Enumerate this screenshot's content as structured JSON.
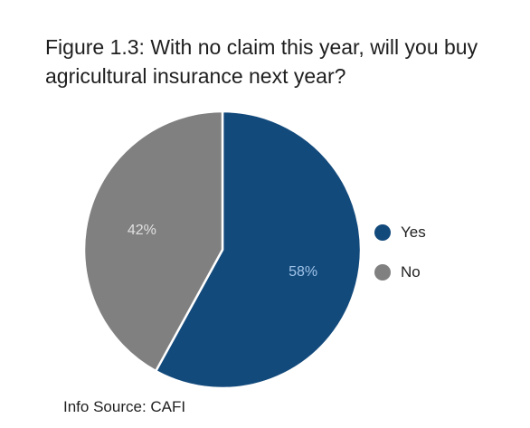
{
  "title_lines": [
    "Figure 1.3: With no claim this year, will you buy",
    "agricultural insurance next year?"
  ],
  "source": "Info Source: CAFI",
  "colors": {
    "yes": "#134a7c",
    "no": "#808080",
    "slice_label_yes": "#9fc3e8",
    "slice_label_no": "#e0e0e0"
  },
  "chart_data": {
    "type": "pie",
    "title": "Figure 1.3: With no claim this year, will you buy agricultural insurance next year?",
    "slices": [
      {
        "label": "Yes",
        "value": 58,
        "display": "58%"
      },
      {
        "label": "No",
        "value": 42,
        "display": "42%"
      }
    ],
    "legend": [
      "Yes",
      "No"
    ],
    "legend_position": "right",
    "start": "12 o'clock",
    "direction": "clockwise"
  }
}
